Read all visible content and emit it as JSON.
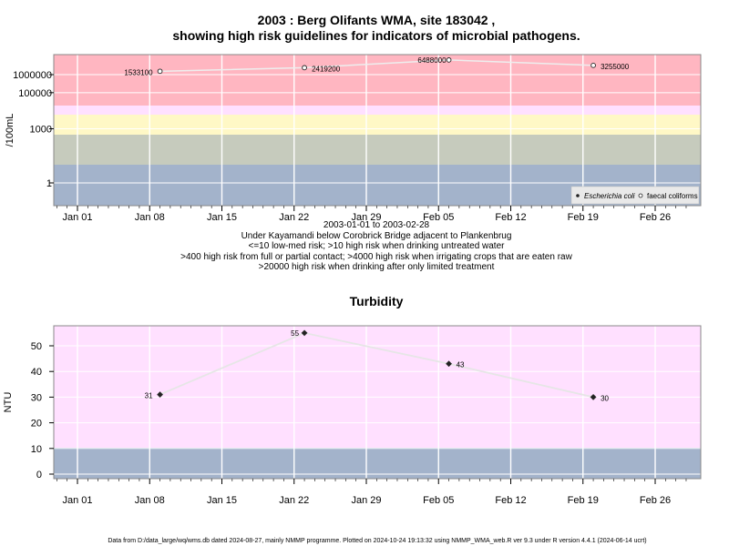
{
  "chart_data": [
    {
      "type": "scatter",
      "title": "2003 : Berg Olifants WMA, site 183042 ,",
      "subtitle": "showing high risk guidelines for indicators of microbial pathogens.",
      "ylabel": "/100mL",
      "y_scale": "log",
      "y_ticks": [
        "1",
        "1000",
        "100000",
        "1000000"
      ],
      "x_ticks": [
        "Jan 01",
        "Jan 08",
        "Jan 15",
        "Jan 22",
        "Jan 29",
        "Feb 05",
        "Feb 12",
        "Feb 19",
        "Feb 26"
      ],
      "caption_lines": [
        "2003-01-01 to 2003-02-28",
        "Under Kayamandi below Corobrick Bridge adjacent to Plankenbrug",
        "<=10 low-med risk; >10 high risk when drinking untreated water",
        ">400 high risk from full or partial contact; >4000 high risk when irrigating crops that are eaten raw",
        ">20000 high risk when drinking after only limited treatment"
      ],
      "legend": {
        "position": "bottom-right",
        "items": [
          "Escherichia coli",
          "faecal coliforms"
        ]
      },
      "series": [
        {
          "name": "faecal coliforms",
          "points": [
            {
              "x": "2003-01-09",
              "y": 1533100,
              "label": "1533100"
            },
            {
              "x": "2003-01-23",
              "y": 2419200,
              "label": "2419200"
            },
            {
              "x": "2003-02-06",
              "y": 6488000,
              "label": "6488000"
            },
            {
              "x": "2003-02-20",
              "y": 3255000,
              "label": "3255000"
            }
          ]
        }
      ],
      "bands_colors": {
        "very_high": "#ffb6c1",
        "pink": "#ffe0ff",
        "yellow": "#fff8c6",
        "grey_green": "#c6cbbd",
        "blue_grey": "#a3b3cb"
      },
      "grid": true
    },
    {
      "type": "scatter",
      "title": "Turbidity",
      "ylabel": "NTU",
      "y_ticks": [
        "0",
        "10",
        "20",
        "30",
        "40",
        "50"
      ],
      "ylim": [
        -1,
        56
      ],
      "x_ticks": [
        "Jan 01",
        "Jan 08",
        "Jan 15",
        "Jan 22",
        "Jan 29",
        "Feb 05",
        "Feb 12",
        "Feb 19",
        "Feb 26"
      ],
      "series": [
        {
          "name": "Turbidity",
          "points": [
            {
              "x": "2003-01-09",
              "y": 31,
              "label": "31"
            },
            {
              "x": "2003-01-23",
              "y": 55,
              "label": "55"
            },
            {
              "x": "2003-02-06",
              "y": 43,
              "label": "43"
            },
            {
              "x": "2003-02-20",
              "y": 30,
              "label": "30"
            }
          ]
        }
      ],
      "bands_colors": {
        "pink": "#ffe0ff",
        "blue_grey": "#a3b3cb"
      },
      "grid": true
    }
  ],
  "footer": "Data from D:/data_large/wq/wms.db dated 2024-08-27, mainly NMMP programme. Plotted on 2024-10-24 19:13:32 using NMMP_WMA_web.R ver 9.3 under R version 4.4.1 (2024-06-14 ucrt)"
}
